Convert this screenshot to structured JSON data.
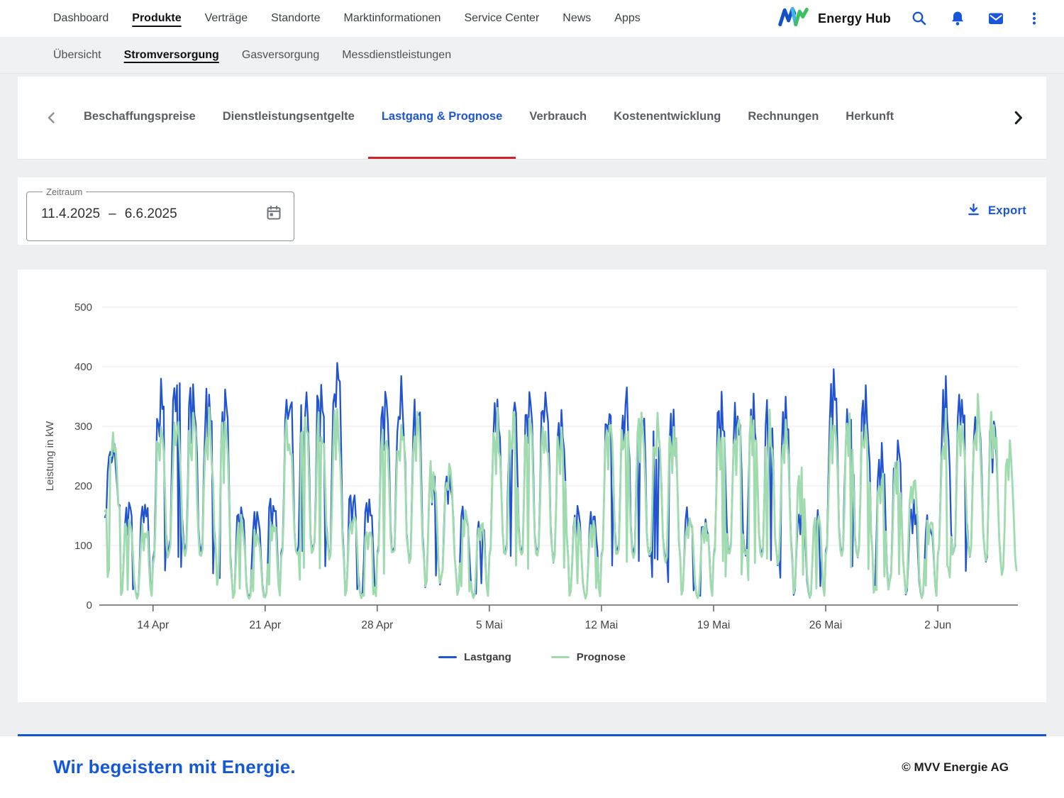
{
  "nav": {
    "brand": "Energy Hub",
    "items": [
      {
        "label": "Dashboard",
        "active": false
      },
      {
        "label": "Produkte",
        "active": true
      },
      {
        "label": "Verträge",
        "active": false
      },
      {
        "label": "Standorte",
        "active": false
      },
      {
        "label": "Marktinformationen",
        "active": false
      },
      {
        "label": "Service Center",
        "active": false
      },
      {
        "label": "News",
        "active": false
      },
      {
        "label": "Apps",
        "active": false
      }
    ],
    "icons": [
      "mvv-logo",
      "search-icon",
      "bell-icon",
      "mail-icon",
      "kebab-menu-icon"
    ],
    "accent_blue": "#1a56db"
  },
  "subnav": {
    "items": [
      {
        "label": "Übersicht",
        "active": false
      },
      {
        "label": "Stromversorgung",
        "active": true
      },
      {
        "label": "Gasversorgung",
        "active": false
      },
      {
        "label": "Messdienstleistungen",
        "active": false
      }
    ]
  },
  "tabs": {
    "items": [
      {
        "label": "Beschaffungspreise",
        "active": false
      },
      {
        "label": "Dienstleistungsentgelte",
        "active": false
      },
      {
        "label": "Lastgang & Prognose",
        "active": true
      },
      {
        "label": "Verbrauch",
        "active": false
      },
      {
        "label": "Kostenentwicklung",
        "active": false
      },
      {
        "label": "Rechnungen",
        "active": false
      },
      {
        "label": "Herkunft",
        "active": false
      }
    ],
    "active_color": "#1e56d6",
    "active_underline_color": "#d2232a"
  },
  "filters": {
    "zeitraum_label": "Zeitraum",
    "date_start": "11.4.2025",
    "date_separator": "–",
    "date_end": "6.6.2025",
    "export_label": "Export"
  },
  "chart_data": {
    "type": "line",
    "title": "",
    "ylabel": "Leistung in kW",
    "ylim": [
      0,
      500
    ],
    "yticks": [
      0,
      100,
      200,
      300,
      400,
      500
    ],
    "xticklabels": [
      "14 Apr",
      "21 Apr",
      "28 Apr",
      "5 Mai",
      "12 Mai",
      "19 Mai",
      "26 Mai",
      "2 Jun"
    ],
    "x_range": [
      "11.4.2025",
      "6.6.2025"
    ],
    "grid": true,
    "legend_position": "bottom",
    "series": [
      {
        "name": "Lastgang",
        "key": "lastgang_peak",
        "color": "#2254cf",
        "width": 2.3,
        "noise_seed": 7
      },
      {
        "name": "Prognose",
        "key": "prognose_peak",
        "color": "#9fdbae",
        "width": 2.8,
        "noise_seed": 13
      }
    ],
    "points_per_day": 12,
    "intraday_shape": [
      0.05,
      0.1,
      0.45,
      0.85,
      0.95,
      0.75,
      1.0,
      0.92,
      0.85,
      0.55,
      0.2,
      0.08
    ],
    "noise": 0.11,
    "dip_chance": 0.07,
    "days": [
      {
        "date": "11.4",
        "lastgang_peak": 265,
        "prognose_peak": 280,
        "low": 150
      },
      {
        "date": "12.4",
        "lastgang_peak": 170,
        "prognose_peak": 150,
        "low": 10
      },
      {
        "date": "13.4",
        "lastgang_peak": 175,
        "prognose_peak": 130,
        "low": 5
      },
      {
        "date": "14.4",
        "lastgang_peak": 345,
        "prognose_peak": 290,
        "low": 60
      },
      {
        "date": "15.4",
        "lastgang_peak": 385,
        "prognose_peak": 300,
        "low": 80
      },
      {
        "date": "16.4",
        "lastgang_peak": 370,
        "prognose_peak": 300,
        "low": 70
      },
      {
        "date": "17.4",
        "lastgang_peak": 355,
        "prognose_peak": 300,
        "low": 75
      },
      {
        "date": "18.4",
        "lastgang_peak": 340,
        "prognose_peak": 290,
        "low": 20
      },
      {
        "date": "19.4",
        "lastgang_peak": 165,
        "prognose_peak": 140,
        "low": 5
      },
      {
        "date": "20.4",
        "lastgang_peak": 150,
        "prognose_peak": 120,
        "low": 5
      },
      {
        "date": "21.4",
        "lastgang_peak": 175,
        "prognose_peak": 150,
        "low": 5
      },
      {
        "date": "22.4",
        "lastgang_peak": 355,
        "prognose_peak": 295,
        "low": 70
      },
      {
        "date": "23.4",
        "lastgang_peak": 350,
        "prognose_peak": 300,
        "low": 70
      },
      {
        "date": "24.4",
        "lastgang_peak": 375,
        "prognose_peak": 305,
        "low": 80
      },
      {
        "date": "25.4",
        "lastgang_peak": 405,
        "prognose_peak": 310,
        "low": 60
      },
      {
        "date": "26.4",
        "lastgang_peak": 190,
        "prognose_peak": 150,
        "low": 10
      },
      {
        "date": "27.4",
        "lastgang_peak": 170,
        "prognose_peak": 130,
        "low": 5
      },
      {
        "date": "28.4",
        "lastgang_peak": 355,
        "prognose_peak": 290,
        "low": 70
      },
      {
        "date": "29.4",
        "lastgang_peak": 350,
        "prognose_peak": 300,
        "low": 75
      },
      {
        "date": "30.4",
        "lastgang_peak": 345,
        "prognose_peak": 295,
        "low": 60
      },
      {
        "date": "1.5",
        "lastgang_peak": 210,
        "prognose_peak": 230,
        "low": 20
      },
      {
        "date": "2.5",
        "lastgang_peak": 235,
        "prognose_peak": 230,
        "low": 40
      },
      {
        "date": "3.5",
        "lastgang_peak": 165,
        "prognose_peak": 150,
        "low": 10
      },
      {
        "date": "4.5",
        "lastgang_peak": 150,
        "prognose_peak": 135,
        "low": 5
      },
      {
        "date": "5.5",
        "lastgang_peak": 330,
        "prognose_peak": 300,
        "low": 70
      },
      {
        "date": "6.5",
        "lastgang_peak": 345,
        "prognose_peak": 305,
        "low": 75
      },
      {
        "date": "7.5",
        "lastgang_peak": 340,
        "prognose_peak": 300,
        "low": 70
      },
      {
        "date": "8.5",
        "lastgang_peak": 345,
        "prognose_peak": 300,
        "low": 75
      },
      {
        "date": "9.5",
        "lastgang_peak": 330,
        "prognose_peak": 300,
        "low": 60
      },
      {
        "date": "10.5",
        "lastgang_peak": 160,
        "prognose_peak": 145,
        "low": 10
      },
      {
        "date": "11.5",
        "lastgang_peak": 150,
        "prognose_peak": 130,
        "low": 5
      },
      {
        "date": "12.5",
        "lastgang_peak": 330,
        "prognose_peak": 300,
        "low": 70
      },
      {
        "date": "13.5",
        "lastgang_peak": 355,
        "prognose_peak": 300,
        "low": 75
      },
      {
        "date": "14.5",
        "lastgang_peak": 340,
        "prognose_peak": 300,
        "low": 70
      },
      {
        "date": "15.5",
        "lastgang_peak": 305,
        "prognose_peak": 295,
        "low": 70
      },
      {
        "date": "16.5",
        "lastgang_peak": 310,
        "prognose_peak": 300,
        "low": 60
      },
      {
        "date": "17.5",
        "lastgang_peak": 160,
        "prognose_peak": 150,
        "low": 10
      },
      {
        "date": "18.5",
        "lastgang_peak": 145,
        "prognose_peak": 130,
        "low": 5
      },
      {
        "date": "19.5",
        "lastgang_peak": 330,
        "prognose_peak": 295,
        "low": 70
      },
      {
        "date": "20.5",
        "lastgang_peak": 340,
        "prognose_peak": 300,
        "low": 75
      },
      {
        "date": "21.5",
        "lastgang_peak": 335,
        "prognose_peak": 300,
        "low": 70
      },
      {
        "date": "22.5",
        "lastgang_peak": 330,
        "prognose_peak": 300,
        "low": 70
      },
      {
        "date": "23.5",
        "lastgang_peak": 320,
        "prognose_peak": 290,
        "low": 55
      },
      {
        "date": "24.5",
        "lastgang_peak": 160,
        "prognose_peak": 220,
        "low": 10
      },
      {
        "date": "25.5",
        "lastgang_peak": 145,
        "prognose_peak": 150,
        "low": 5
      },
      {
        "date": "26.5",
        "lastgang_peak": 378,
        "prognose_peak": 305,
        "low": 75
      },
      {
        "date": "27.5",
        "lastgang_peak": 315,
        "prognose_peak": 290,
        "low": 70
      },
      {
        "date": "28.5",
        "lastgang_peak": 340,
        "prognose_peak": 300,
        "low": 70
      },
      {
        "date": "29.5",
        "lastgang_peak": 255,
        "prognose_peak": 230,
        "low": 10
      },
      {
        "date": "30.5",
        "lastgang_peak": 250,
        "prognose_peak": 235,
        "low": 30
      },
      {
        "date": "31.5",
        "lastgang_peak": 160,
        "prognose_peak": 220,
        "low": 10
      },
      {
        "date": "1.6",
        "lastgang_peak": 145,
        "prognose_peak": 150,
        "low": 5
      },
      {
        "date": "2.6",
        "lastgang_peak": 355,
        "prognose_peak": 300,
        "low": 70
      },
      {
        "date": "3.6",
        "lastgang_peak": 350,
        "prognose_peak": 310,
        "low": 75
      },
      {
        "date": "4.6",
        "lastgang_peak": 330,
        "prognose_peak": 320,
        "low": 70
      },
      {
        "date": "5.6",
        "lastgang_peak": 300,
        "prognose_peak": 310,
        "low": 60
      },
      {
        "date": "6.6",
        "lastgang_peak": null,
        "prognose_peak": 250,
        "low": 40
      }
    ]
  },
  "footer": {
    "slogan": "Wir begeistern mit Energie.",
    "copyright": "© MVV Energie AG"
  }
}
